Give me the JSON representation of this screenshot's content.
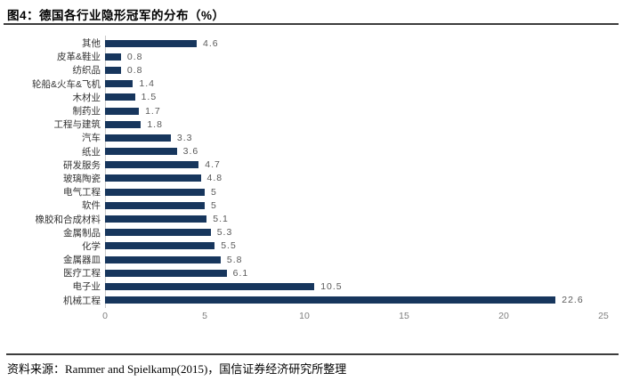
{
  "figure": {
    "title": "图4：德国各行业隐形冠军的分布（%）",
    "source": "资料来源：Rammer and Spielkamp(2015)，国信证券经济研究所整理"
  },
  "chart_data": {
    "type": "bar",
    "orientation": "horizontal",
    "title": "图4：德国各行业隐形冠军的分布（%）",
    "xlabel": "",
    "ylabel": "",
    "categories": [
      "其他",
      "皮革&鞋业",
      "纺织品",
      "轮船&火车&飞机",
      "木材业",
      "制药业",
      "工程与建筑",
      "汽车",
      "纸业",
      "研发服务",
      "玻璃陶瓷",
      "电气工程",
      "软件",
      "橡胶和合成材料",
      "金属制品",
      "化学",
      "金属器皿",
      "医疗工程",
      "电子业",
      "机械工程"
    ],
    "values": [
      4.6,
      0.8,
      0.8,
      1.4,
      1.5,
      1.7,
      1.8,
      3.3,
      3.6,
      4.7,
      4.8,
      5,
      5,
      5.1,
      5.3,
      5.5,
      5.8,
      6.1,
      10.5,
      22.6
    ],
    "value_labels": [
      "4.6",
      "0.8",
      "0.8",
      "1.4",
      "1.5",
      "1.7",
      "1.8",
      "3.3",
      "3.6",
      "4.7",
      "4.8",
      "5",
      "5",
      "5.1",
      "5.3",
      "5.5",
      "5.8",
      "6.1",
      "10.5",
      "22.6"
    ],
    "x_ticks": [
      0,
      5,
      10,
      15,
      20,
      25
    ],
    "xlim": [
      0,
      25
    ],
    "grid": false,
    "legend": null,
    "bar_color": "#17365d",
    "axis_line_color": "#c9c9c9",
    "tick_label_color": "#7f7f7f",
    "value_label_color": "#595959"
  }
}
